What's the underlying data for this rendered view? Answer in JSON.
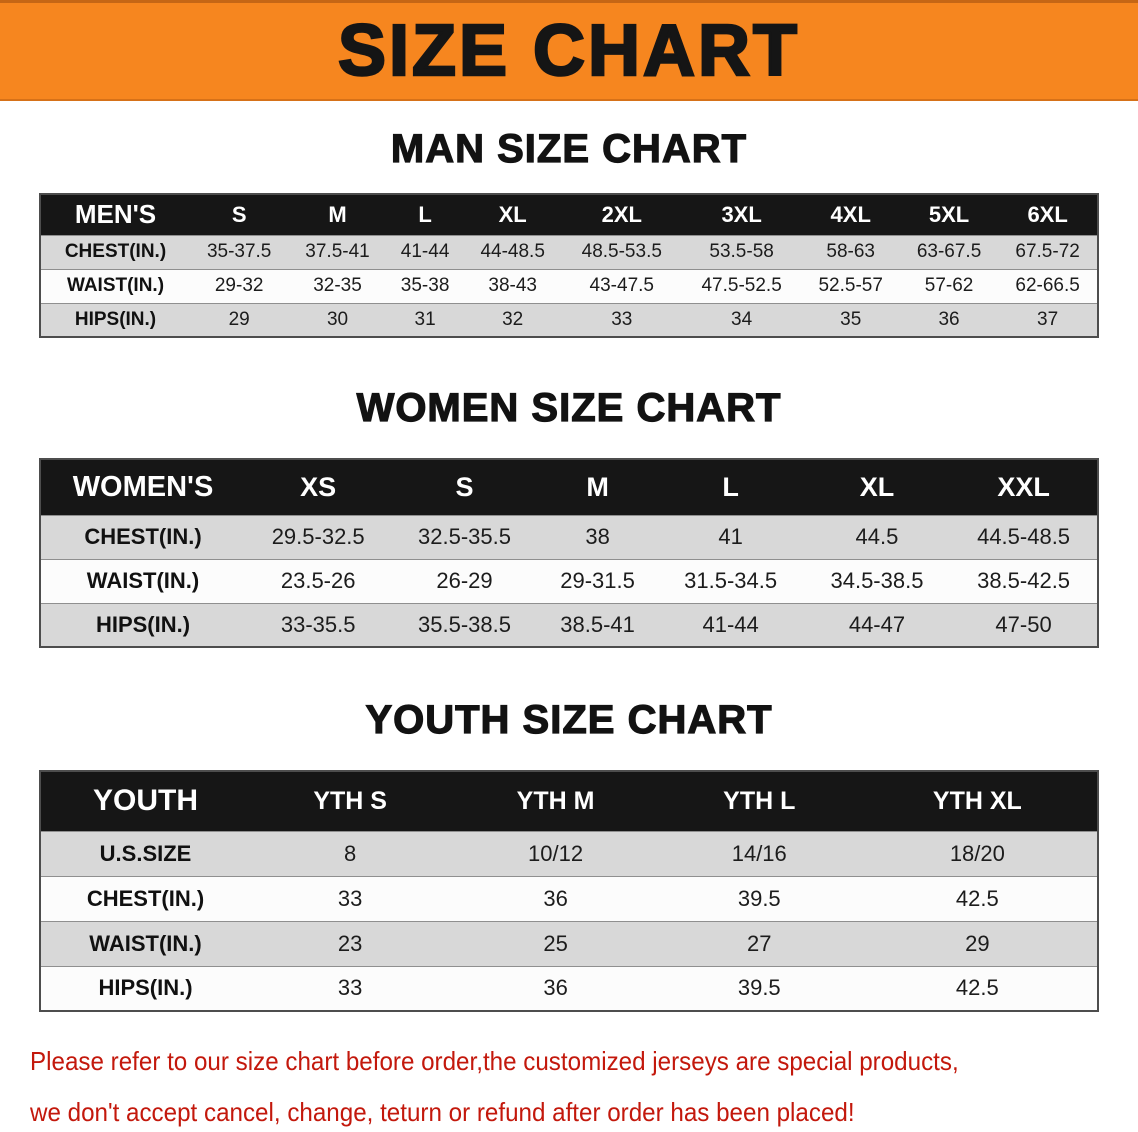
{
  "banner": {
    "title": "SIZE CHART"
  },
  "sections": [
    {
      "id": "men",
      "heading": "MAN SIZE CHART",
      "table": {
        "header": [
          "MEN'S",
          "S",
          "M",
          "L",
          "XL",
          "2XL",
          "3XL",
          "4XL",
          "5XL",
          "6XL"
        ],
        "rows": [
          [
            "CHEST(IN.)",
            "35-37.5",
            "37.5-41",
            "41-44",
            "44-48.5",
            "48.5-53.5",
            "53.5-58",
            "58-63",
            "63-67.5",
            "67.5-72"
          ],
          [
            "WAIST(IN.)",
            "29-32",
            "32-35",
            "35-38",
            "38-43",
            "43-47.5",
            "47.5-52.5",
            "52.5-57",
            "57-62",
            "62-66.5"
          ],
          [
            "HIPS(IN.)",
            "29",
            "30",
            "31",
            "32",
            "33",
            "34",
            "35",
            "36",
            "37"
          ]
        ]
      }
    },
    {
      "id": "women",
      "heading": "WOMEN SIZE CHART",
      "table": {
        "header": [
          "WOMEN'S",
          "XS",
          "S",
          "M",
          "L",
          "XL",
          "XXL"
        ],
        "rows": [
          [
            "CHEST(IN.)",
            "29.5-32.5",
            "32.5-35.5",
            "38",
            "41",
            "44.5",
            "44.5-48.5"
          ],
          [
            "WAIST(IN.)",
            "23.5-26",
            "26-29",
            "29-31.5",
            "31.5-34.5",
            "34.5-38.5",
            "38.5-42.5"
          ],
          [
            "HIPS(IN.)",
            "33-35.5",
            "35.5-38.5",
            "38.5-41",
            "41-44",
            "44-47",
            "47-50"
          ]
        ]
      }
    },
    {
      "id": "youth",
      "heading": "YOUTH SIZE CHART",
      "table": {
        "header": [
          "YOUTH",
          "YTH S",
          "YTH M",
          "YTH L",
          "YTH XL"
        ],
        "rows": [
          [
            "U.S.SIZE",
            "8",
            "10/12",
            "14/16",
            "18/20"
          ],
          [
            "CHEST(IN.)",
            "33",
            "36",
            "39.5",
            "42.5"
          ],
          [
            "WAIST(IN.)",
            "23",
            "25",
            "27",
            "29"
          ],
          [
            "HIPS(IN.)",
            "33",
            "36",
            "39.5",
            "42.5"
          ]
        ]
      }
    }
  ],
  "disclaimer": {
    "lines": [
      "Please refer to our size chart before order,the customized jerseys are special products,",
      "we don't accept cancel, change, teturn or refund after order has been placed!"
    ]
  },
  "colors": {
    "banner_bg": "#f6861f",
    "table_header_bg": "#161616",
    "row_shaded": "#d8d8d8",
    "row_plain": "#fcfcfc",
    "disclaimer_text": "#c3180c",
    "heading_text": "#121212"
  }
}
